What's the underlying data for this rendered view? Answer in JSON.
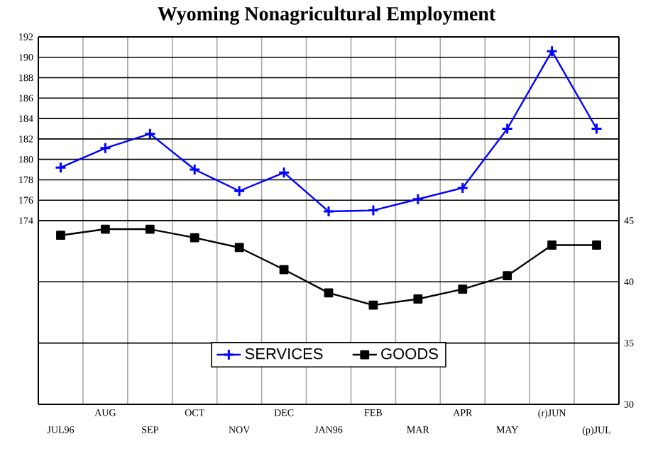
{
  "chart_data": {
    "type": "line",
    "title": "Wyoming Nonagricultural Employment",
    "categories": [
      "JUL96",
      "AUG",
      "SEP",
      "OCT",
      "NOV",
      "DEC",
      "JAN96",
      "FEB",
      "MAR",
      "APR",
      "MAY",
      "(r)JUN",
      "(p)JUL"
    ],
    "series": [
      {
        "name": "SERVICES",
        "color": "#0000ff",
        "marker": "cross",
        "values": [
          179.2,
          181.1,
          182.5,
          179.0,
          176.9,
          178.7,
          174.9,
          175.0,
          176.1,
          177.2,
          183.0,
          190.6,
          183.0
        ]
      },
      {
        "name": "GOODS",
        "color": "#000000",
        "marker": "square",
        "axis": "y2",
        "values": [
          43.8,
          44.3,
          44.3,
          43.6,
          42.8,
          41.0,
          39.1,
          38.1,
          38.6,
          39.4,
          40.5,
          43.0,
          43.0
        ]
      }
    ],
    "ylim": [
      156,
      192
    ],
    "yticks": [
      174,
      176,
      178,
      180,
      182,
      184,
      186,
      188,
      190,
      192
    ],
    "y2lim": [
      30,
      60
    ],
    "y2ticks": [
      30,
      35,
      40,
      45
    ],
    "grid": true,
    "legend": "bottom",
    "line_style": "solid"
  }
}
